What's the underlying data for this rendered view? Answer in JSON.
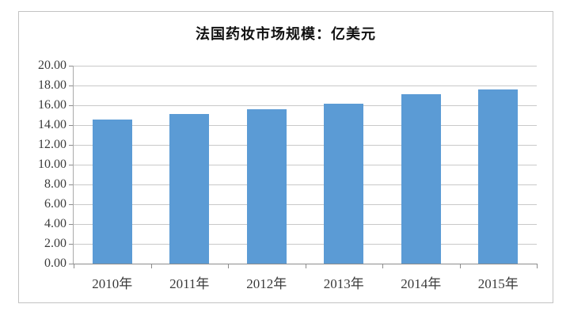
{
  "chart_data": {
    "type": "bar",
    "title": "法国药妆市场规模：亿美元",
    "categories": [
      "2010年",
      "2011年",
      "2012年",
      "2013年",
      "2014年",
      "2015年"
    ],
    "values": [
      14.6,
      15.1,
      15.6,
      16.2,
      17.1,
      17.6
    ],
    "series_name": "法国药妆市场规模",
    "unit": "亿美元",
    "xlabel": "",
    "ylabel": "",
    "ylim": [
      0,
      20
    ],
    "ytick_step": 2,
    "y_tick_labels": [
      "20.00",
      "18.00",
      "16.00",
      "14.00",
      "12.00",
      "10.00",
      "8.00",
      "6.00",
      "4.00",
      "2.00",
      "0.00"
    ],
    "grid": "horizontal",
    "legend": "none",
    "colors": {
      "bar": "#5b9bd5",
      "gridline": "#c9c9c9",
      "axis": "#8c8c8c",
      "frame_border": "#c3c3c3",
      "label_text": "#3b3b3b",
      "title_text": "#111111",
      "background": "#ffffff"
    }
  }
}
